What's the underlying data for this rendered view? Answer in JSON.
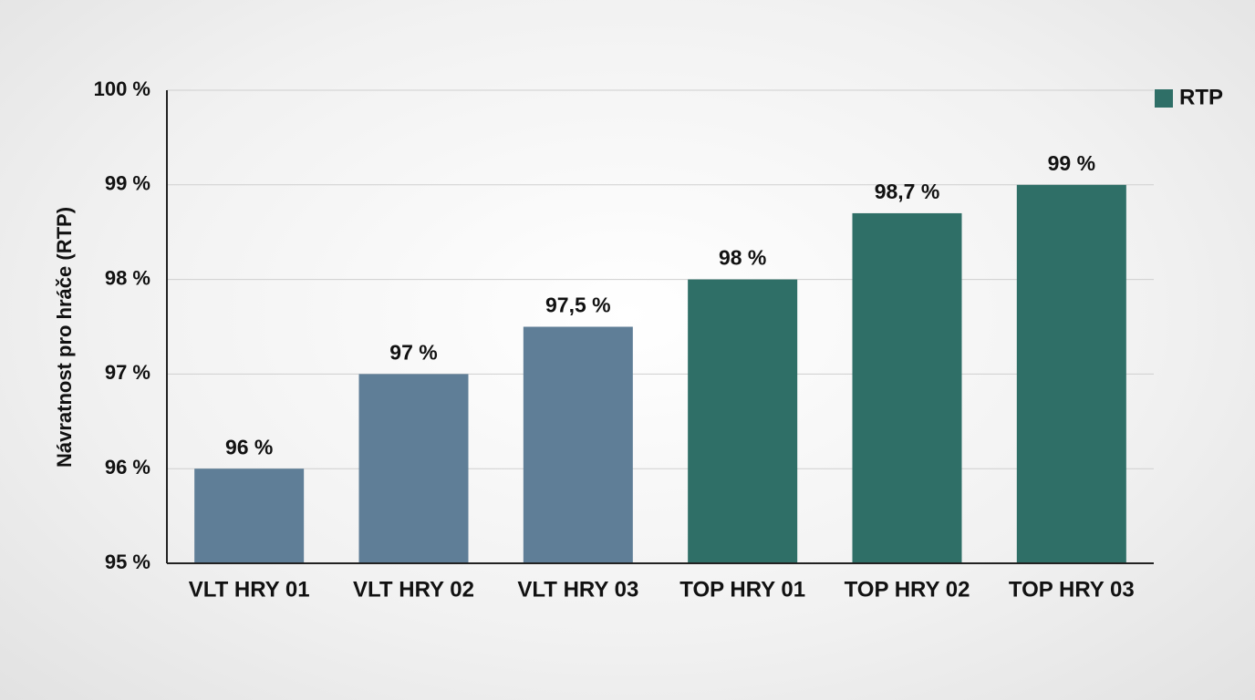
{
  "chart_data": {
    "type": "bar",
    "y_label": "Návratnost pro hráče (RTP)",
    "categories": [
      "VLT HRY 01",
      "VLT HRY 02",
      "VLT HRY 03",
      "TOP HRY 01",
      "TOP HRY 02",
      "TOP HRY 03"
    ],
    "series": [
      {
        "name": "RTP",
        "color": "#2f6f67",
        "colors": [
          "#5f7e97",
          "#5f7e97",
          "#5f7e97",
          "#2f6f67",
          "#2f6f67",
          "#2f6f67"
        ],
        "values": [
          96,
          97,
          97.5,
          98,
          98.7,
          99
        ],
        "value_labels": [
          "96 %",
          "97 %",
          "97,5 %",
          "98 %",
          "98,7 %",
          "99 %"
        ]
      }
    ],
    "ylim": [
      95,
      100
    ],
    "yticks": [
      {
        "value": 95,
        "label": "95 %"
      },
      {
        "value": 96,
        "label": "96 %"
      },
      {
        "value": 97,
        "label": "97 %"
      },
      {
        "value": 98,
        "label": "98 %"
      },
      {
        "value": 99,
        "label": "99 %"
      },
      {
        "value": 100,
        "label": "100 %"
      }
    ],
    "grid": true,
    "legend": "top-right"
  }
}
